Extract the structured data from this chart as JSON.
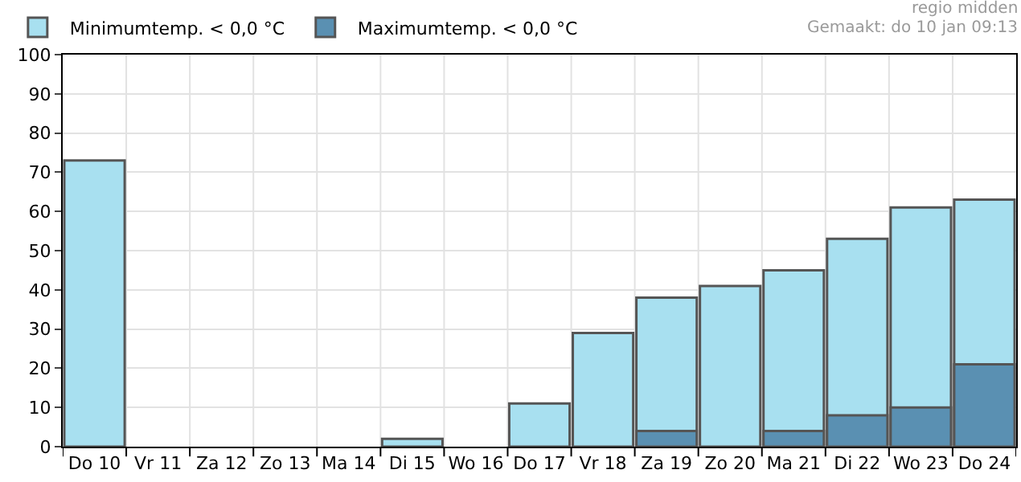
{
  "chart_data": {
    "type": "bar",
    "categories": [
      "Do 10",
      "Vr 11",
      "Za 12",
      "Zo 13",
      "Ma 14",
      "Di 15",
      "Wo 16",
      "Do 17",
      "Vr 18",
      "Za 19",
      "Zo 20",
      "Ma 21",
      "Di 22",
      "Wo 23",
      "Do 24"
    ],
    "series": [
      {
        "name": "Minimumtemp. < 0,0 °C",
        "color": "#a8e0f0",
        "values": [
          73,
          null,
          null,
          null,
          null,
          2,
          null,
          11,
          29,
          38,
          41,
          45,
          53,
          61,
          63
        ]
      },
      {
        "name": "Maximumtemp. < 0,0 °C",
        "color": "#5a90b2",
        "values": [
          null,
          null,
          null,
          null,
          null,
          null,
          null,
          null,
          null,
          4,
          null,
          4,
          8,
          10,
          21
        ]
      }
    ],
    "ylim": [
      0,
      100
    ],
    "yticks": [
      0,
      10,
      20,
      30,
      40,
      50,
      60,
      70,
      80,
      90,
      100
    ],
    "grid": true,
    "legend": "top left",
    "annotations": [
      "regio midden",
      "Gemaakt: do 10 jan 09:13"
    ]
  }
}
